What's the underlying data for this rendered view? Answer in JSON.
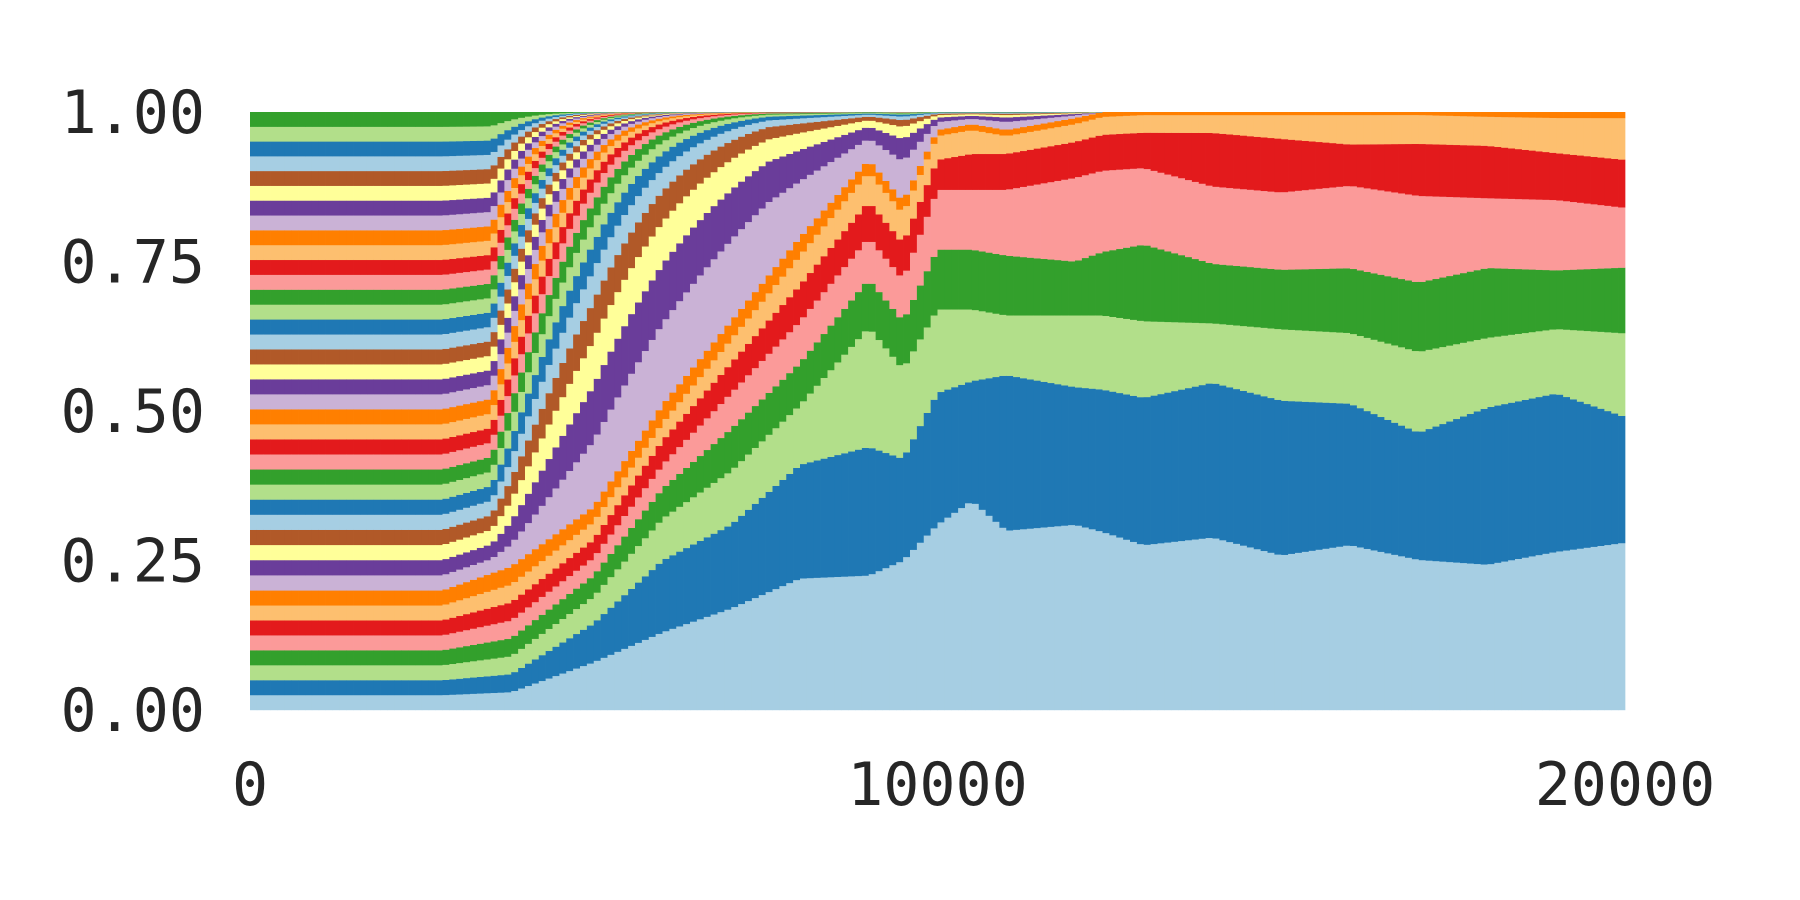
{
  "chart_data": {
    "type": "area",
    "stacked": true,
    "normalized": true,
    "rendered_as": "stacked-bars",
    "series_count": 40,
    "bar_count": 200,
    "x_start": 0,
    "x_end": 20000,
    "xlim": [
      0,
      20000
    ],
    "ylim": [
      0,
      1
    ],
    "xticks": [
      0,
      10000,
      20000
    ],
    "xtick_labels": [
      "0",
      "10000",
      "20000"
    ],
    "yticks": [
      0,
      0.25,
      0.5,
      0.75,
      1
    ],
    "ytick_labels": [
      "0.00",
      "0.25",
      "0.50",
      "0.75",
      "1.00"
    ],
    "grid": false,
    "legend": "none",
    "title": "",
    "xlabel": "",
    "ylabel": "",
    "colormap": "Paired",
    "palette": [
      "#a6cee3",
      "#1f78b4",
      "#b2df8a",
      "#33a02c",
      "#fb9a99",
      "#e31a1c",
      "#fdbf6f",
      "#ff7f00",
      "#cab2d6",
      "#6a3d9a",
      "#ffff99",
      "#b15928"
    ],
    "dominant_series_share": {
      "x": [
        0,
        2800,
        3800,
        5000,
        6000,
        7000,
        8000,
        9000,
        9500,
        10000,
        10500,
        11000,
        12000,
        13000,
        14000,
        15000,
        16000,
        17000,
        18000,
        19000,
        20000
      ],
      "series": [
        {
          "values": [
            0.025,
            0.025,
            0.03,
            0.08,
            0.13,
            0.17,
            0.22,
            0.225,
            0.25,
            0.31,
            0.35,
            0.3,
            0.31,
            0.28,
            0.29,
            0.26,
            0.28,
            0.26,
            0.25,
            0.27,
            0.28
          ]
        },
        {
          "values": [
            0.025,
            0.025,
            0.03,
            0.065,
            0.12,
            0.14,
            0.19,
            0.215,
            0.17,
            0.22,
            0.2,
            0.26,
            0.23,
            0.25,
            0.26,
            0.26,
            0.24,
            0.22,
            0.27,
            0.27,
            0.21
          ]
        },
        {
          "values": [
            0.025,
            0.025,
            0.03,
            0.045,
            0.07,
            0.09,
            0.1,
            0.2,
            0.15,
            0.14,
            0.12,
            0.1,
            0.12,
            0.13,
            0.1,
            0.12,
            0.12,
            0.14,
            0.12,
            0.11,
            0.14
          ]
        },
        {
          "values": [
            0.025,
            0.025,
            0.03,
            0.035,
            0.05,
            0.07,
            0.07,
            0.08,
            0.08,
            0.1,
            0.1,
            0.1,
            0.09,
            0.13,
            0.1,
            0.1,
            0.11,
            0.12,
            0.12,
            0.1,
            0.11
          ]
        },
        {
          "values": [
            0.025,
            0.025,
            0.03,
            0.03,
            0.04,
            0.06,
            0.07,
            0.07,
            0.07,
            0.1,
            0.1,
            0.11,
            0.14,
            0.13,
            0.13,
            0.13,
            0.14,
            0.15,
            0.12,
            0.12,
            0.1
          ]
        },
        {
          "values": [
            0.025,
            0.025,
            0.03,
            0.03,
            0.04,
            0.05,
            0.06,
            0.06,
            0.06,
            0.05,
            0.06,
            0.06,
            0.06,
            0.06,
            0.09,
            0.09,
            0.07,
            0.09,
            0.09,
            0.08,
            0.08
          ]
        },
        {
          "values": [
            0.025,
            0.025,
            0.03,
            0.03,
            0.03,
            0.04,
            0.05,
            0.05,
            0.05,
            0.04,
            0.04,
            0.03,
            0.03,
            0.03,
            0.03,
            0.04,
            0.05,
            0.05,
            0.05,
            0.06,
            0.07
          ]
        },
        {
          "values": [
            0.025,
            0.025,
            0.03,
            0.025,
            0.03,
            0.03,
            0.03,
            0.02,
            0.02,
            0.01,
            0.01,
            0.01,
            0.01,
            0.005,
            0.005,
            0.005,
            0.005,
            0.005,
            0.008,
            0.01,
            0.01
          ]
        }
      ]
    }
  }
}
